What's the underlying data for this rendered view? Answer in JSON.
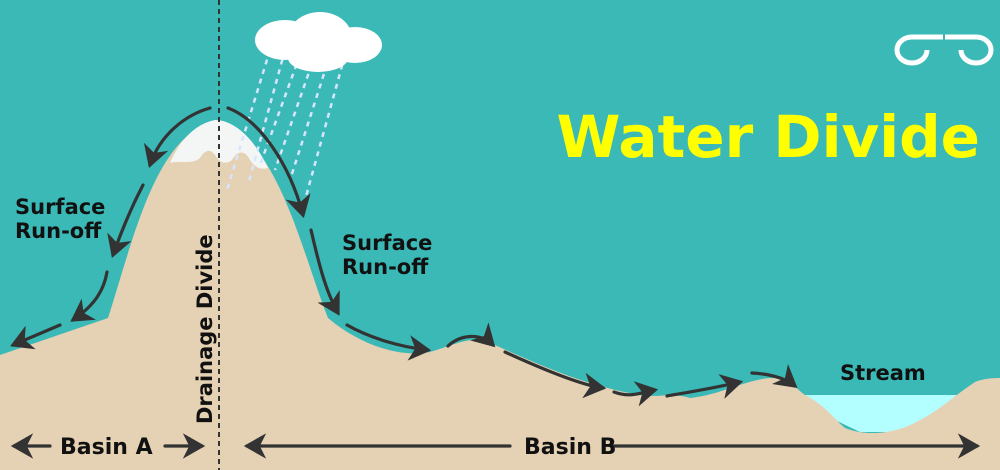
{
  "title": "Water Divide",
  "labels": {
    "runoff_left_line1": "Surface",
    "runoff_left_line2": "Run-off",
    "runoff_right_line1": "Surface",
    "runoff_right_line2": "Run-off",
    "drainage_divide": "Drainage Divide",
    "stream": "Stream",
    "basin_a": "Basin A",
    "basin_b": "Basin B"
  },
  "logo": "GfG",
  "colors": {
    "sky": "#3ab9b6",
    "land": "#e5d1b3",
    "snow": "#f4f6f6",
    "stream": "#b3ffff",
    "title": "#ffff00",
    "arrows": "#333333"
  }
}
